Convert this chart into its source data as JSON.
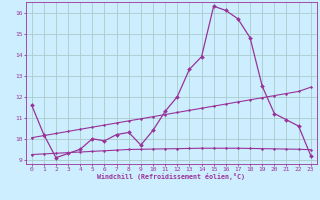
{
  "xlabel": "Windchill (Refroidissement éolien,°C)",
  "background_color": "#cceeff",
  "grid_color": "#aacccc",
  "line_color": "#993399",
  "x_values": [
    0,
    1,
    2,
    3,
    4,
    5,
    6,
    7,
    8,
    9,
    10,
    11,
    12,
    13,
    14,
    15,
    16,
    17,
    18,
    19,
    20,
    21,
    22,
    23
  ],
  "series1": [
    11.6,
    10.2,
    9.1,
    9.3,
    9.5,
    10.0,
    9.9,
    10.2,
    10.3,
    9.7,
    10.4,
    11.3,
    12.0,
    13.3,
    13.9,
    16.3,
    16.1,
    15.7,
    14.8,
    12.5,
    11.2,
    10.9,
    10.6,
    9.2
  ],
  "trend1": [
    10.05,
    10.15,
    10.25,
    10.35,
    10.45,
    10.55,
    10.65,
    10.75,
    10.85,
    10.95,
    11.05,
    11.15,
    11.25,
    11.35,
    11.45,
    11.55,
    11.65,
    11.75,
    11.85,
    11.95,
    12.05,
    12.15,
    12.25,
    12.45
  ],
  "trend2": [
    9.25,
    9.28,
    9.31,
    9.34,
    9.37,
    9.4,
    9.43,
    9.46,
    9.49,
    9.5,
    9.51,
    9.52,
    9.53,
    9.54,
    9.55,
    9.55,
    9.55,
    9.55,
    9.54,
    9.53,
    9.52,
    9.51,
    9.5,
    9.48
  ],
  "ylim": [
    8.8,
    16.5
  ],
  "xlim": [
    -0.5,
    23.5
  ],
  "yticks": [
    9,
    10,
    11,
    12,
    13,
    14,
    15,
    16
  ],
  "xticks": [
    0,
    1,
    2,
    3,
    4,
    5,
    6,
    7,
    8,
    9,
    10,
    11,
    12,
    13,
    14,
    15,
    16,
    17,
    18,
    19,
    20,
    21,
    22,
    23
  ]
}
